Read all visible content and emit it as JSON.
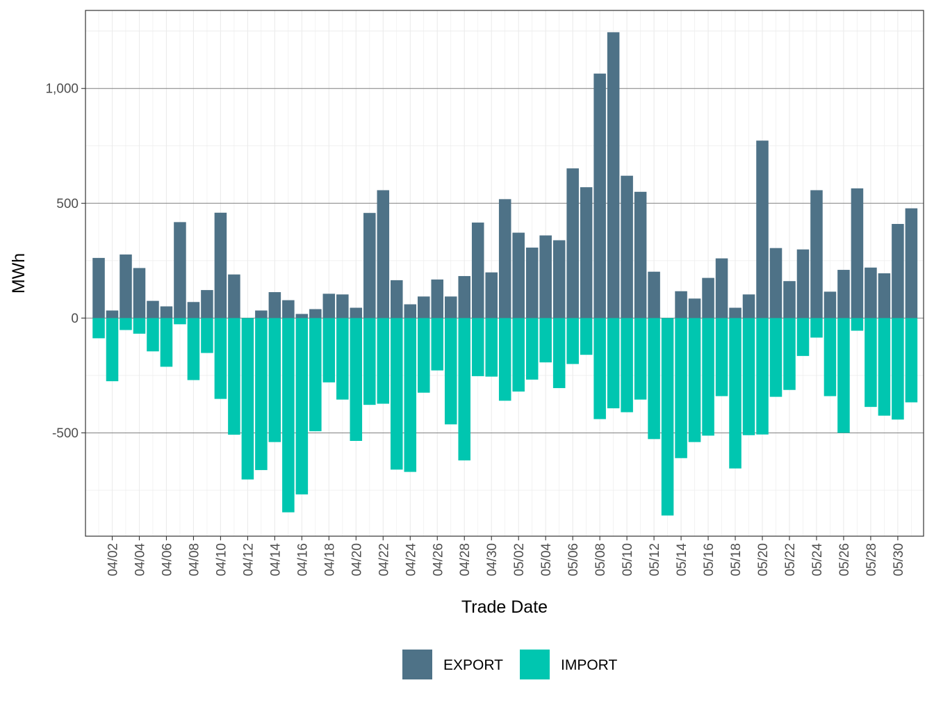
{
  "chart_data": {
    "type": "bar",
    "stacked": "diverging",
    "xlabel": "Trade Date",
    "ylabel": "MWh",
    "ylim": [
      -950,
      1340
    ],
    "y_ticks": [
      {
        "value": -500,
        "label": "-500"
      },
      {
        "value": 0,
        "label": "0"
      },
      {
        "value": 500,
        "label": "500"
      },
      {
        "value": 1000,
        "label": "1,000"
      }
    ],
    "grid": true,
    "legend_position": "bottom",
    "x_tick_labels": [
      "04/02",
      "04/04",
      "04/06",
      "04/08",
      "04/10",
      "04/12",
      "04/14",
      "04/16",
      "04/18",
      "04/20",
      "04/22",
      "04/24",
      "04/26",
      "04/28",
      "04/30",
      "05/02",
      "05/04",
      "05/06",
      "05/08",
      "05/10",
      "05/12",
      "05/14",
      "05/16",
      "05/18",
      "05/20",
      "05/22",
      "05/24",
      "05/26",
      "05/28",
      "05/30"
    ],
    "categories": [
      "04/01",
      "04/02",
      "04/03",
      "04/04",
      "04/05",
      "04/06",
      "04/07",
      "04/08",
      "04/09",
      "04/10",
      "04/11",
      "04/12",
      "04/13",
      "04/14",
      "04/15",
      "04/16",
      "04/17",
      "04/18",
      "04/19",
      "04/20",
      "04/21",
      "04/22",
      "04/23",
      "04/24",
      "04/25",
      "04/26",
      "04/27",
      "04/28",
      "04/29",
      "04/30",
      "05/01",
      "05/02",
      "05/03",
      "05/04",
      "05/05",
      "05/06",
      "05/07",
      "05/08",
      "05/09",
      "05/10",
      "05/11",
      "05/12",
      "05/13",
      "05/14",
      "05/15",
      "05/16",
      "05/17",
      "05/18",
      "05/19",
      "05/20",
      "05/21",
      "05/22",
      "05/23",
      "05/24",
      "05/25",
      "05/26",
      "05/27",
      "05/28",
      "05/29",
      "05/30",
      "05/31"
    ],
    "series": [
      {
        "name": "EXPORT",
        "color": "#4e7287",
        "values": [
          262,
          33,
          277,
          218,
          75,
          51,
          418,
          70,
          122,
          459,
          190,
          0,
          33,
          113,
          78,
          18,
          39,
          106,
          103,
          45,
          458,
          557,
          165,
          60,
          94,
          168,
          94,
          183,
          416,
          199,
          518,
          372,
          307,
          360,
          339,
          652,
          570,
          1065,
          1245,
          620,
          550,
          202,
          0,
          117,
          85,
          175,
          260,
          45,
          103,
          773,
          305,
          161,
          299,
          557,
          115,
          210,
          565,
          220,
          195,
          410,
          478
        ]
      },
      {
        "name": "IMPORT",
        "color": "#00c6b0",
        "values": [
          -88,
          -275,
          -52,
          -68,
          -145,
          -212,
          -27,
          -270,
          -152,
          -352,
          -508,
          -703,
          -662,
          -540,
          -846,
          -768,
          -493,
          -280,
          -355,
          -535,
          -378,
          -373,
          -660,
          -670,
          -325,
          -228,
          -463,
          -620,
          -253,
          -255,
          -360,
          -320,
          -268,
          -193,
          -305,
          -200,
          -160,
          -440,
          -393,
          -410,
          -355,
          -527,
          -860,
          -610,
          -540,
          -512,
          -340,
          -655,
          -510,
          -507,
          -343,
          -313,
          -165,
          -85,
          -340,
          -500,
          -55,
          -387,
          -425,
          -442,
          -367
        ]
      }
    ]
  }
}
